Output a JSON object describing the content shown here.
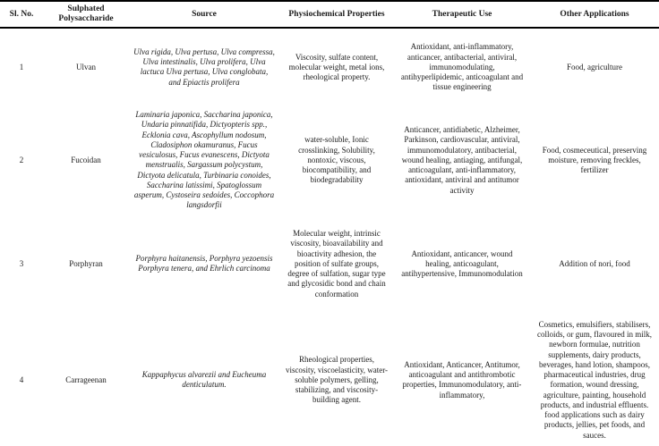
{
  "table": {
    "headers": {
      "sl_no": "Sl. No.",
      "polysaccharide": "Sulphated Polysaccharide",
      "source": "Source",
      "physiochemical": "Physiochemical Properties",
      "therapeutic": "Therapeutic Use",
      "other": "Other Applications"
    },
    "rows": [
      {
        "sl_no": "1",
        "polysaccharide": "Ulvan",
        "source": "Ulva rigida, Ulva pertusa, Ulva compressa, Ulva intestinalis, Ulva prolifera, Ulva lactuca Ulva pertusa, Ulva conglobata, and Epiactis prolifera",
        "physiochemical": "Viscosity, sulfate content, molecular weight, metal ions, rheological property.",
        "therapeutic": "Antioxidant, anti-inflammatory, anticancer, antibacterial, antiviral, immunomodulating, antihyperlipidemic, anticoagulant and tissue engineering",
        "other": "Food, agriculture"
      },
      {
        "sl_no": "2",
        "polysaccharide": "Fucoidan",
        "source": "Laminaria japonica, Saccharina japonica, Undaria pinnatifida, Dictyopteris spp., Ecklonia cava, Ascophyllum nodosum, Cladosiphon okamuranus, Fucus vesiculosus, Fucus evanescens, Dictyota menstrualis, Sargassum polycystum, Dictyota delicatula, Turbinaria conoides, Saccharina latissimi, Spatoglossum asperum, Cystoseira sedoides, Coccophora langsdorfii",
        "physiochemical": "water-soluble, Ionic crosslinking, Solubility, nontoxic, viscous, biocompatibility, and biodegradability",
        "therapeutic": "Anticancer, antidiabetic, Alzheimer, Parkinson, cardiovascular, antiviral, immunomodulatory, antibacterial, wound healing, antiaging, antifungal, anticoagulant, anti-inflammatory, antioxidant, antiviral and antitumor activity",
        "other": "Food, cosmeceutical, preserving moisture, removing freckles, fertilizer"
      },
      {
        "sl_no": "3",
        "polysaccharide": "Porphyran",
        "source": "Porphyra haitanensis, Porphyra yezoensis Porphyra tenera, and Ehrlich carcinoma",
        "physiochemical": "Molecular weight, intrinsic viscosity, bioavailability and bioactivity adhesion, the position of sulfate groups, degree of sulfation, sugar type and glycosidic bond and chain conformation",
        "therapeutic": "Antioxidant, anticancer, wound healing, anticoagulant, antihypertensive, Immunomodulation",
        "other": "Addition of nori, food"
      },
      {
        "sl_no": "4",
        "polysaccharide": "Carrageenan",
        "source": "Kappaphycus alvarezii and Eucheuma denticulatum.",
        "physiochemical": "Rheological properties, viscosity, viscoelasticity, water-soluble polymers, gelling, stabilizing, and viscosity-building agent.",
        "therapeutic": "Antioxidant, Anticancer, Antitumor, anticoagulant and antithrombotic properties, Immunomodulatory, anti-inflammatory,",
        "other": "Cosmetics, emulsifiers, stabilisers, colloids, or gum, flavoured in milk, newborn formulae, nutrition supplements, dairy products, beverages, hand lotion, shampoos, pharmaceutical industries, drug formation, wound dressing, agriculture, painting, household products, and industrial effluents. food applications such as dairy products, jellies, pet foods, and sauces."
      }
    ]
  }
}
